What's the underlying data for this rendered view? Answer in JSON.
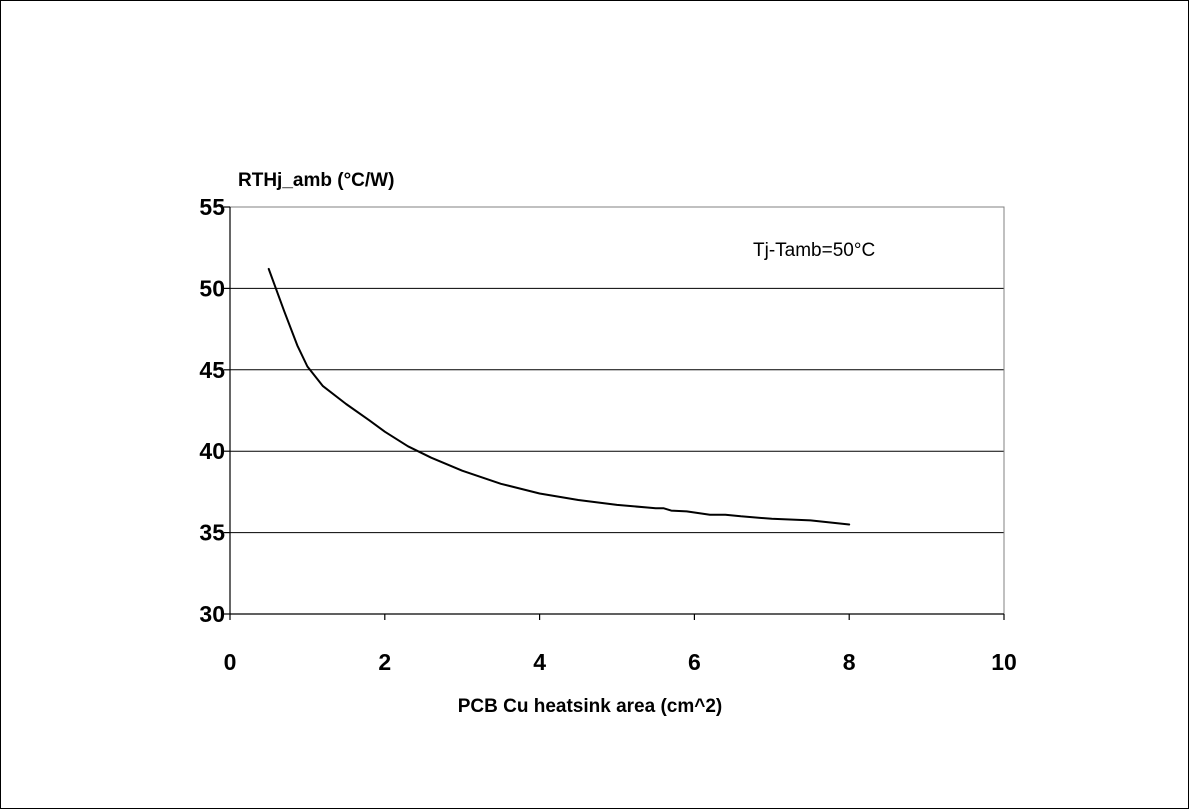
{
  "chart_data": {
    "type": "line",
    "title": "",
    "xlabel": "PCB Cu heatsink area (cm^2)",
    "ylabel": "RTHj_amb (°C/W)",
    "annotation": "Tj-Tamb=50°C",
    "xlim": [
      0,
      10
    ],
    "ylim": [
      30,
      55
    ],
    "x_ticks": [
      0,
      2,
      4,
      6,
      8,
      10
    ],
    "y_ticks": [
      30,
      35,
      40,
      45,
      50,
      55
    ],
    "x_tick_labels": [
      "0",
      "2",
      "4",
      "6",
      "8",
      "10"
    ],
    "y_tick_labels": [
      "30",
      "35",
      "40",
      "45",
      "50",
      "55"
    ],
    "grid": "horizontal",
    "legend": "none",
    "series": [
      {
        "color": "#000000",
        "x": [
          0.5,
          0.7,
          0.87,
          1.0,
          1.2,
          1.5,
          1.8,
          2.0,
          2.3,
          2.6,
          3.0,
          3.5,
          4.0,
          4.5,
          5.0,
          5.5,
          5.6,
          5.7,
          5.9,
          6.2,
          6.4,
          6.6,
          7.0,
          7.5,
          8.0
        ],
        "y": [
          51.2,
          48.6,
          46.5,
          45.2,
          44.0,
          42.9,
          41.9,
          41.2,
          40.3,
          39.6,
          38.8,
          38.0,
          37.4,
          37.0,
          36.7,
          36.5,
          36.5,
          36.35,
          36.3,
          36.1,
          36.1,
          36.0,
          35.85,
          35.75,
          35.5
        ]
      }
    ]
  }
}
